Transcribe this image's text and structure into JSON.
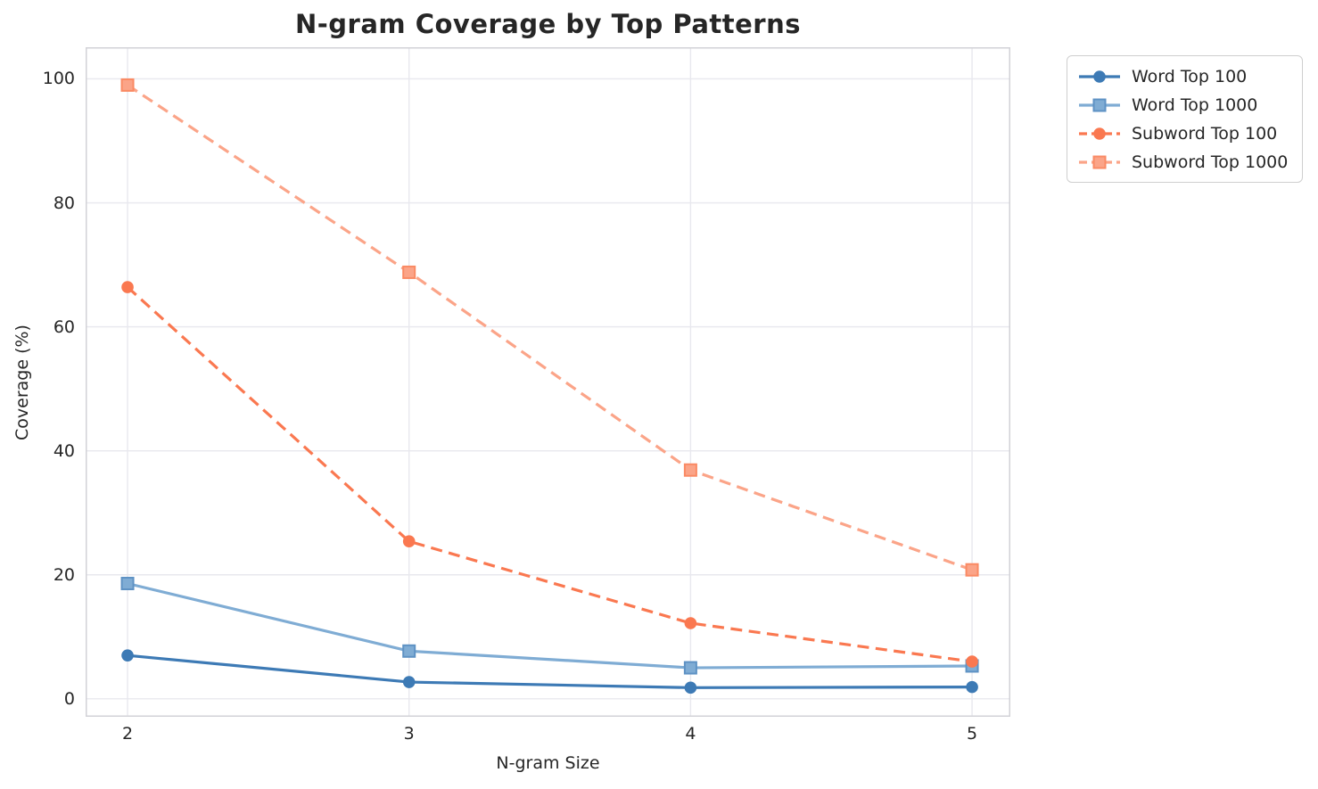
{
  "title": "N-gram Coverage by Top Patterns",
  "chart_data": {
    "type": "line",
    "title": "N-gram Coverage by Top Patterns",
    "xlabel": "N-gram Size",
    "ylabel": "Coverage (%)",
    "x": [
      2,
      3,
      4,
      5
    ],
    "xticks": [
      2,
      3,
      4,
      5
    ],
    "yticks": [
      0,
      20,
      40,
      60,
      80,
      100
    ],
    "xlim": [
      1.851,
      5.136
    ],
    "ylim": [
      -2.9,
      105.1
    ],
    "grid": true,
    "legend_position": "outside-upper-right",
    "series": [
      {
        "name": "Word Top 100",
        "values": [
          7.0,
          2.7,
          1.8,
          1.9
        ],
        "color": "#3d7ab5",
        "marker_edge": "#3d7ab5",
        "line_style": "solid",
        "marker": "circle"
      },
      {
        "name": "Word Top 1000",
        "values": [
          18.6,
          7.7,
          5.0,
          5.3
        ],
        "color": "#7facd4",
        "marker_edge": "#5e92c4",
        "line_style": "solid",
        "marker": "square"
      },
      {
        "name": "Subword Top 100",
        "values": [
          66.4,
          25.4,
          12.2,
          6.0
        ],
        "color": "#fa7850",
        "marker_edge": "#fa7850",
        "line_style": "dashed",
        "marker": "circle"
      },
      {
        "name": "Subword Top 1000",
        "values": [
          99.0,
          68.8,
          36.9,
          20.8
        ],
        "color": "#fba488",
        "marker_edge": "#fa8a64",
        "line_style": "dashed",
        "marker": "square"
      }
    ]
  },
  "colors": {
    "grid": "#e8e8ee",
    "spine": "#d2d2d7",
    "text": "#262626",
    "background": "#ffffff"
  }
}
